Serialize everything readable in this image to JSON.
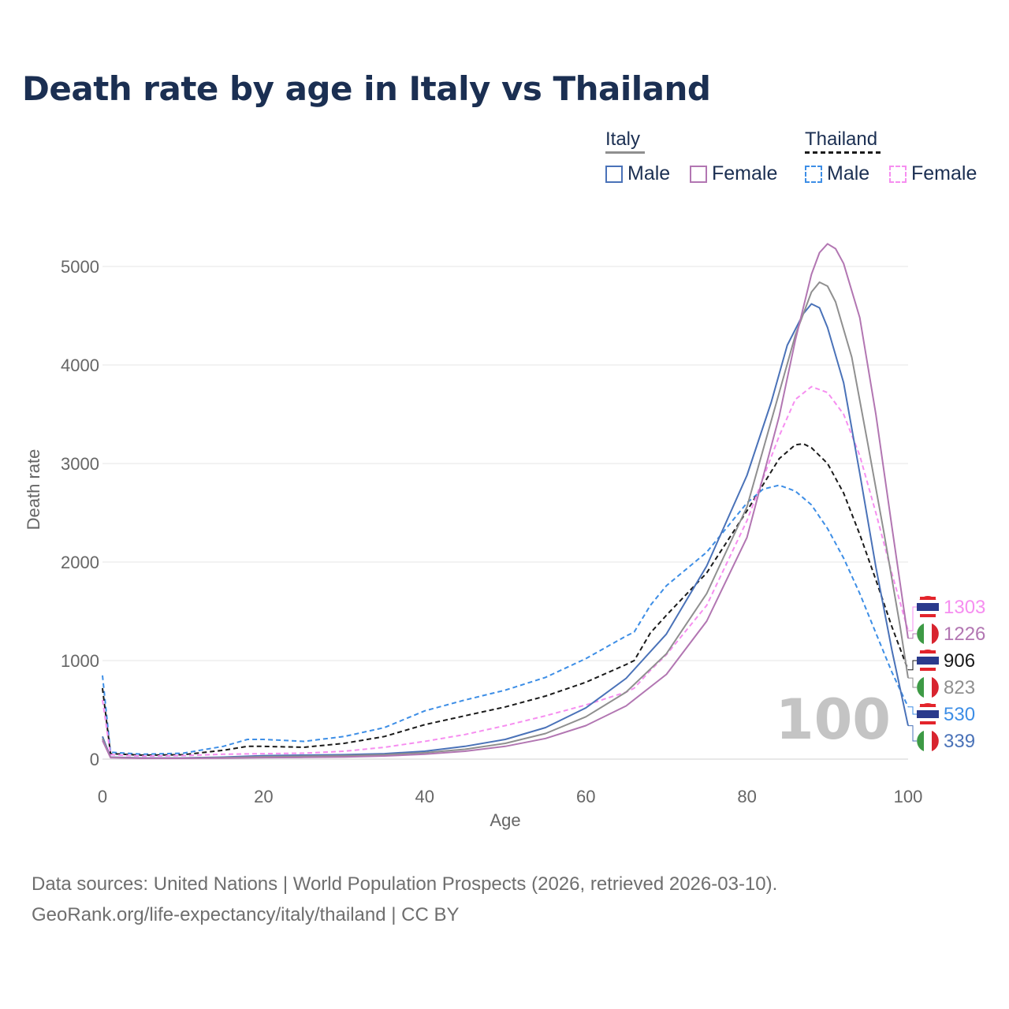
{
  "title": "Death rate by age in Italy vs Thailand",
  "legend": {
    "italy": {
      "label": "Italy",
      "male": "Male",
      "female": "Female"
    },
    "thailand": {
      "label": "Thailand",
      "male": "Male",
      "female": "Female"
    }
  },
  "colors": {
    "italy_total": "#8f8f8f",
    "italy_male": "#4a72b8",
    "italy_female": "#b276b2",
    "thailand_total": "#1a1a1a",
    "thailand_male": "#3d8ee6",
    "thailand_female": "#f68ef0"
  },
  "highlight_age": "100",
  "footer": {
    "line1": "Data sources: United Nations | World Population Prospects (2026, retrieved 2026-03-10).",
    "line2": "GeoRank.org/life-expectancy/italy/thailand | CC BY"
  },
  "chart_data": {
    "type": "line",
    "title": "Death rate by age in Italy vs Thailand",
    "xlabel": "Age",
    "ylabel": "Death rate",
    "xlim": [
      0,
      100
    ],
    "ylim": [
      0,
      5300
    ],
    "xticks": [
      0,
      20,
      40,
      60,
      80,
      100
    ],
    "yticks": [
      0,
      1000,
      2000,
      3000,
      4000,
      5000
    ],
    "grid": true,
    "series": [
      {
        "key": "thailand_male",
        "name": "Thailand Male",
        "dashed": true,
        "end_label": "530",
        "points": [
          [
            0,
            850
          ],
          [
            1,
            70
          ],
          [
            5,
            50
          ],
          [
            10,
            60
          ],
          [
            15,
            130
          ],
          [
            18,
            200
          ],
          [
            20,
            200
          ],
          [
            25,
            180
          ],
          [
            30,
            230
          ],
          [
            35,
            320
          ],
          [
            40,
            490
          ],
          [
            45,
            600
          ],
          [
            50,
            700
          ],
          [
            55,
            830
          ],
          [
            60,
            1020
          ],
          [
            65,
            1250
          ],
          [
            66,
            1290
          ],
          [
            68,
            1560
          ],
          [
            70,
            1760
          ],
          [
            75,
            2100
          ],
          [
            80,
            2600
          ],
          [
            82,
            2740
          ],
          [
            84,
            2780
          ],
          [
            86,
            2720
          ],
          [
            88,
            2580
          ],
          [
            90,
            2340
          ],
          [
            92,
            2040
          ],
          [
            94,
            1680
          ],
          [
            96,
            1280
          ],
          [
            98,
            880
          ],
          [
            100,
            530
          ]
        ]
      },
      {
        "key": "thailand_total",
        "name": "Thailand",
        "dashed": true,
        "end_label": "906",
        "points": [
          [
            0,
            720
          ],
          [
            1,
            55
          ],
          [
            5,
            40
          ],
          [
            10,
            45
          ],
          [
            15,
            90
          ],
          [
            18,
            130
          ],
          [
            20,
            130
          ],
          [
            25,
            120
          ],
          [
            30,
            160
          ],
          [
            35,
            230
          ],
          [
            40,
            350
          ],
          [
            45,
            440
          ],
          [
            50,
            530
          ],
          [
            55,
            640
          ],
          [
            60,
            780
          ],
          [
            65,
            960
          ],
          [
            66,
            1000
          ],
          [
            68,
            1280
          ],
          [
            70,
            1460
          ],
          [
            75,
            1890
          ],
          [
            80,
            2520
          ],
          [
            84,
            3050
          ],
          [
            86,
            3190
          ],
          [
            87,
            3200
          ],
          [
            88,
            3160
          ],
          [
            90,
            3000
          ],
          [
            92,
            2700
          ],
          [
            94,
            2280
          ],
          [
            96,
            1820
          ],
          [
            98,
            1340
          ],
          [
            100,
            906
          ]
        ]
      },
      {
        "key": "thailand_female",
        "name": "Thailand Female",
        "dashed": true,
        "end_label": "1303",
        "points": [
          [
            0,
            600
          ],
          [
            1,
            45
          ],
          [
            5,
            30
          ],
          [
            10,
            35
          ],
          [
            15,
            50
          ],
          [
            20,
            55
          ],
          [
            25,
            60
          ],
          [
            30,
            80
          ],
          [
            35,
            120
          ],
          [
            40,
            180
          ],
          [
            45,
            250
          ],
          [
            50,
            340
          ],
          [
            55,
            440
          ],
          [
            60,
            550
          ],
          [
            65,
            680
          ],
          [
            66,
            720
          ],
          [
            68,
            900
          ],
          [
            70,
            1060
          ],
          [
            75,
            1560
          ],
          [
            80,
            2420
          ],
          [
            84,
            3280
          ],
          [
            86,
            3650
          ],
          [
            88,
            3780
          ],
          [
            90,
            3720
          ],
          [
            92,
            3500
          ],
          [
            94,
            3080
          ],
          [
            96,
            2500
          ],
          [
            98,
            1880
          ],
          [
            100,
            1303
          ]
        ]
      },
      {
        "key": "italy_male",
        "name": "Italy Male",
        "dashed": false,
        "end_label": "339",
        "points": [
          [
            0,
            230
          ],
          [
            1,
            20
          ],
          [
            5,
            12
          ],
          [
            10,
            12
          ],
          [
            15,
            20
          ],
          [
            20,
            35
          ],
          [
            25,
            40
          ],
          [
            30,
            45
          ],
          [
            35,
            55
          ],
          [
            40,
            80
          ],
          [
            45,
            130
          ],
          [
            50,
            200
          ],
          [
            55,
            320
          ],
          [
            60,
            520
          ],
          [
            65,
            820
          ],
          [
            70,
            1270
          ],
          [
            75,
            1960
          ],
          [
            80,
            2880
          ],
          [
            83,
            3620
          ],
          [
            85,
            4200
          ],
          [
            87,
            4520
          ],
          [
            88,
            4620
          ],
          [
            89,
            4580
          ],
          [
            90,
            4380
          ],
          [
            92,
            3820
          ],
          [
            94,
            2900
          ],
          [
            96,
            1950
          ],
          [
            98,
            1100
          ],
          [
            100,
            339
          ]
        ]
      },
      {
        "key": "italy_total",
        "name": "Italy",
        "dashed": false,
        "end_label": "823",
        "points": [
          [
            0,
            210
          ],
          [
            1,
            18
          ],
          [
            5,
            10
          ],
          [
            10,
            10
          ],
          [
            15,
            15
          ],
          [
            20,
            25
          ],
          [
            25,
            30
          ],
          [
            30,
            35
          ],
          [
            35,
            45
          ],
          [
            40,
            65
          ],
          [
            45,
            100
          ],
          [
            50,
            160
          ],
          [
            55,
            260
          ],
          [
            60,
            430
          ],
          [
            65,
            680
          ],
          [
            70,
            1070
          ],
          [
            75,
            1680
          ],
          [
            80,
            2560
          ],
          [
            84,
            3720
          ],
          [
            86,
            4300
          ],
          [
            88,
            4740
          ],
          [
            89,
            4840
          ],
          [
            90,
            4800
          ],
          [
            91,
            4640
          ],
          [
            93,
            4080
          ],
          [
            95,
            3200
          ],
          [
            97,
            2300
          ],
          [
            99,
            1350
          ],
          [
            100,
            823
          ]
        ]
      },
      {
        "key": "italy_female",
        "name": "Italy Female",
        "dashed": false,
        "end_label": "1226",
        "points": [
          [
            0,
            190
          ],
          [
            1,
            15
          ],
          [
            5,
            8
          ],
          [
            10,
            8
          ],
          [
            15,
            10
          ],
          [
            20,
            15
          ],
          [
            25,
            18
          ],
          [
            30,
            22
          ],
          [
            35,
            32
          ],
          [
            40,
            50
          ],
          [
            45,
            80
          ],
          [
            50,
            130
          ],
          [
            55,
            210
          ],
          [
            60,
            340
          ],
          [
            65,
            540
          ],
          [
            70,
            860
          ],
          [
            75,
            1400
          ],
          [
            80,
            2250
          ],
          [
            84,
            3480
          ],
          [
            86,
            4250
          ],
          [
            88,
            4920
          ],
          [
            89,
            5140
          ],
          [
            90,
            5230
          ],
          [
            91,
            5180
          ],
          [
            92,
            5030
          ],
          [
            94,
            4480
          ],
          [
            96,
            3500
          ],
          [
            98,
            2350
          ],
          [
            100,
            1226
          ]
        ]
      }
    ],
    "end_labels_order": [
      "thailand_female",
      "italy_female",
      "thailand_total",
      "italy_total",
      "thailand_male",
      "italy_male"
    ],
    "end_label_flags": {
      "thailand_female": "thailand",
      "italy_female": "italy",
      "thailand_total": "thailand",
      "italy_total": "italy",
      "thailand_male": "thailand",
      "italy_male": "italy"
    }
  }
}
